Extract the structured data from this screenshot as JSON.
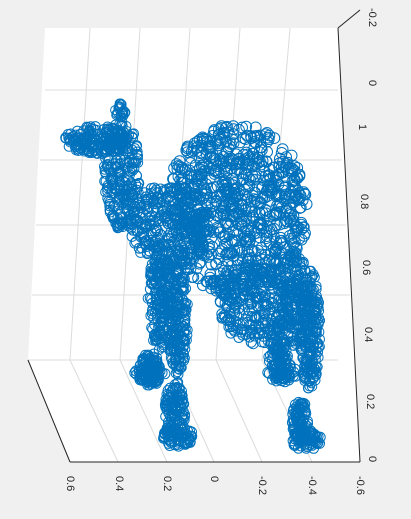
{
  "chart_data": {
    "type": "scatter",
    "subtype": "3d-point-cloud",
    "description_shape": "camel",
    "marker": "open-circle",
    "marker_color": "#0072bd",
    "background_color": "#f0f0f0",
    "axes_face_color": "#ffffff",
    "grid_color": "#dcdcdc",
    "grid": true,
    "view_rotated_90": true,
    "title": "",
    "xlabel": "",
    "ylabel": "",
    "zlabel": "",
    "bottom_axis": {
      "ticks": [
        "0.6",
        "0.4",
        "0.2",
        "0",
        "-0.2",
        "-0.4",
        "-0.6"
      ],
      "range": [
        0.6,
        -0.6
      ]
    },
    "right_axis_near": {
      "ticks": [
        "0",
        "0.2",
        "0.4",
        "0.6",
        "0.8",
        "1"
      ],
      "range": [
        0,
        1
      ]
    },
    "right_axis_far": {
      "ticks": [
        "0",
        "-0.2"
      ],
      "range": [
        0,
        -0.2
      ]
    }
  }
}
